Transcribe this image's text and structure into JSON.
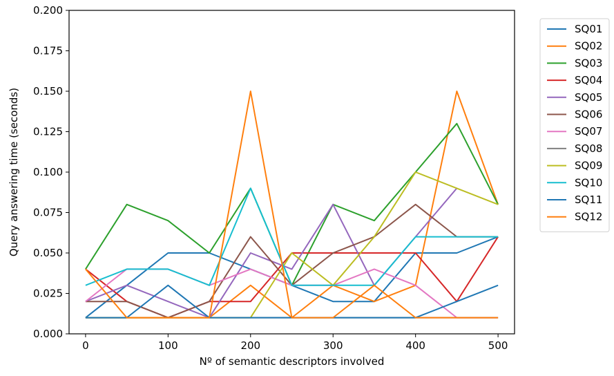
{
  "chart_data": {
    "type": "line",
    "title": "",
    "xlabel": "Nº of semantic descriptors involved",
    "ylabel": "Query answering time (seconds)",
    "xlim": [
      -20,
      520
    ],
    "ylim": [
      0,
      0.2
    ],
    "x_ticks": [
      "0",
      "100",
      "200",
      "300",
      "400",
      "500"
    ],
    "y_ticks": [
      "0.000",
      "0.025",
      "0.050",
      "0.075",
      "0.100",
      "0.125",
      "0.150",
      "0.175",
      "0.200"
    ],
    "grid": false,
    "legend_position": "outside-right",
    "x": [
      0,
      50,
      100,
      150,
      200,
      250,
      300,
      350,
      400,
      450,
      500
    ],
    "series": [
      {
        "name": "SQ01",
        "color": "#1f77b4",
        "values": [
          0.01,
          0.03,
          0.05,
          0.05,
          0.04,
          0.03,
          0.02,
          0.02,
          0.05,
          0.05,
          0.06
        ]
      },
      {
        "name": "SQ02",
        "color": "#ff7f0e",
        "values": [
          0.01,
          0.01,
          0.01,
          0.01,
          0.03,
          0.01,
          0.03,
          0.02,
          0.03,
          0.15,
          0.08
        ]
      },
      {
        "name": "SQ03",
        "color": "#2ca02c",
        "values": [
          0.04,
          0.08,
          0.07,
          0.05,
          0.09,
          0.03,
          0.08,
          0.07,
          0.1,
          0.13,
          0.08
        ]
      },
      {
        "name": "SQ04",
        "color": "#d62728",
        "values": [
          0.04,
          0.02,
          0.01,
          0.02,
          0.02,
          0.05,
          0.05,
          0.05,
          0.05,
          0.02,
          0.06
        ]
      },
      {
        "name": "SQ05",
        "color": "#9467bd",
        "values": [
          0.02,
          0.03,
          0.02,
          0.01,
          0.05,
          0.04,
          0.08,
          0.03,
          0.06,
          0.09,
          null
        ]
      },
      {
        "name": "SQ06",
        "color": "#8c564b",
        "values": [
          0.02,
          0.02,
          0.01,
          0.02,
          0.06,
          0.03,
          0.05,
          0.06,
          0.08,
          0.06,
          0.06
        ]
      },
      {
        "name": "SQ07",
        "color": "#e377c2",
        "values": [
          0.02,
          0.04,
          0.04,
          0.03,
          0.04,
          0.03,
          0.03,
          0.04,
          0.03,
          0.01,
          0.01
        ]
      },
      {
        "name": "SQ08",
        "color": "#7f7f7f",
        "values": [
          0.01,
          0.01,
          0.01,
          0.01,
          0.01,
          0.01,
          0.01,
          0.01,
          0.01,
          0.01,
          0.01
        ]
      },
      {
        "name": "SQ09",
        "color": "#bcbd22",
        "values": [
          0.01,
          0.01,
          0.01,
          0.01,
          0.01,
          0.05,
          0.03,
          0.06,
          0.1,
          0.09,
          0.08
        ]
      },
      {
        "name": "SQ10",
        "color": "#17becf",
        "values": [
          0.03,
          0.04,
          0.04,
          0.03,
          0.09,
          0.03,
          0.03,
          0.03,
          0.06,
          0.06,
          0.06
        ]
      },
      {
        "name": "SQ11",
        "color": "#1f77b4",
        "values": [
          0.01,
          0.01,
          0.03,
          0.01,
          0.01,
          0.01,
          0.01,
          0.01,
          0.01,
          0.02,
          0.03
        ]
      },
      {
        "name": "SQ12",
        "color": "#ff7f0e",
        "values": [
          0.04,
          0.01,
          0.01,
          0.01,
          0.15,
          0.01,
          0.01,
          0.03,
          0.01,
          0.01,
          0.01
        ]
      }
    ]
  }
}
